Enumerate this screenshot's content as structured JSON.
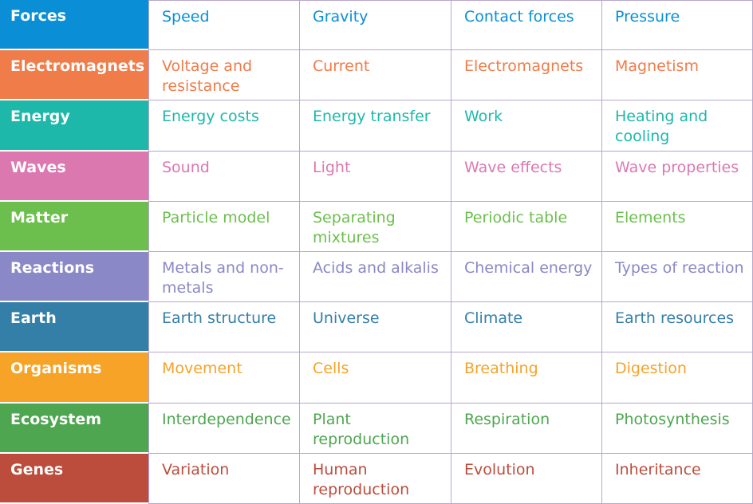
{
  "rows": [
    {
      "topic": "Forces",
      "color": "#0a8fd6",
      "items": [
        "Speed",
        "Gravity",
        "Contact forces",
        "Pressure"
      ]
    },
    {
      "topic": "Electromagnets",
      "color": "#f07c4a",
      "items": [
        "Voltage and resistance",
        "Current",
        "Electromagnets",
        "Magnetism"
      ]
    },
    {
      "topic": "Energy",
      "color": "#1eb8aa",
      "items": [
        "Energy costs",
        "Energy transfer",
        "Work",
        "Heating and cooling"
      ]
    },
    {
      "topic": "Waves",
      "color": "#dc78b0",
      "items": [
        "Sound",
        "Light",
        "Wave effects",
        "Wave properties"
      ]
    },
    {
      "topic": "Matter",
      "color": "#6cbf4c",
      "items": [
        "Particle model",
        "Separating mixtures",
        "Periodic table",
        "Elements"
      ]
    },
    {
      "topic": "Reactions",
      "color": "#8a88c6",
      "items": [
        "Metals and non-metals",
        "Acids and alkalis",
        "Chemical energy",
        "Types of reaction"
      ]
    },
    {
      "topic": "Earth",
      "color": "#347fa8",
      "items": [
        "Earth structure",
        "Universe",
        "Climate",
        "Earth resources"
      ]
    },
    {
      "topic": "Organisms",
      "color": "#f6a328",
      "items": [
        "Movement",
        "Cells",
        "Breathing",
        "Digestion"
      ]
    },
    {
      "topic": "Ecosystem",
      "color": "#4ea650",
      "items": [
        "Interdependence",
        "Plant reproduction",
        "Respiration",
        "Photosynthesis"
      ]
    },
    {
      "topic": "Genes",
      "color": "#bc4c3c",
      "items": [
        "Variation",
        "Human reproduction",
        "Evolution",
        "Inheritance"
      ]
    }
  ]
}
